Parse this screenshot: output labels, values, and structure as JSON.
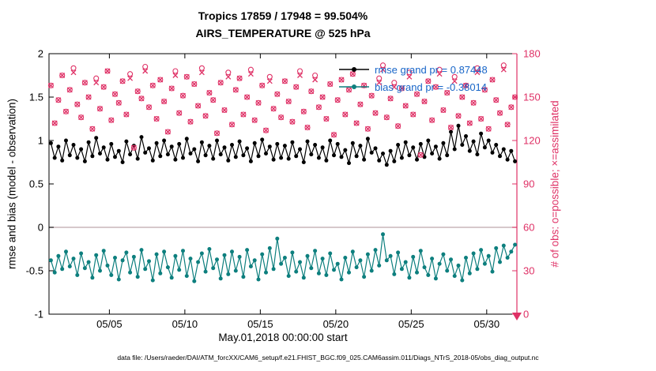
{
  "footer": "data file: /Users/raeder/DAI/ATM_forcXX/CAM6_setup/f.e21.FHIST_BGC.f09_025.CAM6assim.011/Diags_NTrS_2018-05/obs_diag_output.nc",
  "colors": {
    "rmse": "#000000",
    "bias": "#0d7f7e",
    "obs": "#df3166",
    "zero_line": "#c9b6ba",
    "legend_text": "#1765c8",
    "axis_black": "#000000"
  },
  "chart_data": {
    "type": "line+scatter",
    "title_line1": "Tropics 17859 / 17948 = 99.504%",
    "title_line2": "AIRS_TEMPERATURE @ 525 hPa",
    "xlabel": "May.01,2018 00:00:00 start",
    "ylabel_left": "rmse and bias (model - observation)",
    "ylabel_right": "# of obs: o=possible; ×=assimilated",
    "grid": "off",
    "zero_line": true,
    "x_axis": {
      "range_days": [
        0,
        31
      ],
      "ticks_days": [
        4,
        9,
        14,
        19,
        24,
        29
      ],
      "tick_labels": [
        "05/05",
        "05/10",
        "05/15",
        "05/20",
        "05/25",
        "05/30"
      ]
    },
    "left_axis": {
      "range": [
        -1,
        2
      ],
      "ticks": [
        -1,
        -0.5,
        0,
        0.5,
        1,
        1.5,
        2
      ],
      "tick_labels": [
        "-1",
        "-0.5",
        "0",
        "0.5",
        "1",
        "1.5",
        "2"
      ]
    },
    "right_axis": {
      "range": [
        0,
        180
      ],
      "ticks": [
        0,
        30,
        60,
        90,
        120,
        150,
        180
      ],
      "tick_labels": [
        "0",
        "30",
        "60",
        "90",
        "120",
        "150",
        "180"
      ]
    },
    "x": {
      "start_day": 0.125,
      "step_days": 0.25,
      "count": 124
    },
    "legend": {
      "position": "top-right",
      "text_color": "#1765c8",
      "entries": [
        {
          "series": "rmse",
          "label": "rmse grand pr = 0.87448"
        },
        {
          "series": "bias",
          "label": "bias grand pr = -0.38014"
        }
      ]
    },
    "series": [
      {
        "name": "rmse",
        "axis": "left",
        "line": true,
        "marker": "filled-circle",
        "color": "#000000",
        "grand_value": 0.87448,
        "values": [
          0.97,
          0.8,
          0.93,
          0.77,
          1.0,
          0.83,
          0.95,
          0.8,
          0.9,
          0.76,
          0.98,
          0.82,
          1.03,
          0.85,
          0.92,
          0.78,
          0.96,
          0.81,
          0.88,
          0.75,
          0.99,
          0.84,
          0.94,
          0.79,
          1.04,
          0.86,
          0.91,
          0.77,
          0.97,
          0.82,
          1.0,
          0.84,
          0.93,
          0.78,
          0.96,
          0.8,
          1.02,
          0.85,
          0.9,
          0.76,
          0.98,
          0.83,
          0.94,
          0.79,
          1.0,
          0.84,
          0.92,
          0.77,
          0.95,
          0.81,
          0.99,
          0.83,
          0.91,
          0.76,
          0.97,
          0.82,
          1.01,
          0.85,
          0.93,
          0.78,
          0.96,
          0.8,
          0.94,
          0.79,
          0.98,
          0.82,
          0.9,
          0.75,
          0.99,
          0.84,
          0.95,
          0.8,
          0.92,
          0.77,
          1.0,
          0.83,
          0.96,
          0.81,
          0.89,
          0.74,
          0.97,
          0.82,
          0.94,
          0.78,
          1.02,
          0.86,
          0.91,
          0.77,
          0.85,
          0.72,
          0.88,
          0.76,
          0.95,
          0.8,
          0.98,
          0.83,
          0.92,
          0.78,
          0.96,
          0.81,
          1.0,
          0.85,
          0.93,
          0.79,
          0.97,
          0.83,
          1.1,
          0.9,
          1.17,
          0.95,
          1.05,
          0.88,
          0.99,
          0.84,
          1.08,
          0.92,
          1.0,
          0.86,
          0.95,
          0.82,
          0.9,
          0.78,
          0.88,
          0.76
        ]
      },
      {
        "name": "bias",
        "axis": "left",
        "line": true,
        "marker": "filled-circle",
        "color": "#0d7f7e",
        "grand_value": -0.38014,
        "values": [
          -0.38,
          -0.52,
          -0.33,
          -0.48,
          -0.28,
          -0.45,
          -0.36,
          -0.55,
          -0.3,
          -0.47,
          -0.4,
          -0.58,
          -0.32,
          -0.5,
          -0.27,
          -0.44,
          -0.55,
          -0.35,
          -0.6,
          -0.38,
          -0.29,
          -0.52,
          -0.34,
          -0.57,
          -0.26,
          -0.48,
          -0.39,
          -0.61,
          -0.31,
          -0.53,
          -0.28,
          -0.46,
          -0.58,
          -0.33,
          -0.49,
          -0.27,
          -0.56,
          -0.36,
          -0.62,
          -0.4,
          -0.3,
          -0.51,
          -0.25,
          -0.47,
          -0.37,
          -0.59,
          -0.32,
          -0.54,
          -0.28,
          -0.5,
          -0.34,
          -0.57,
          -0.26,
          -0.45,
          -0.38,
          -0.6,
          -0.31,
          -0.52,
          -0.24,
          -0.48,
          -0.13,
          -0.42,
          -0.35,
          -0.56,
          -0.29,
          -0.51,
          -0.4,
          -0.58,
          -0.33,
          -0.47,
          -0.27,
          -0.53,
          -0.36,
          -0.55,
          -0.3,
          -0.49,
          -0.42,
          -0.6,
          -0.35,
          -0.52,
          -0.28,
          -0.46,
          -0.38,
          -0.57,
          -0.31,
          -0.5,
          -0.26,
          -0.44,
          -0.08,
          -0.38,
          -0.33,
          -0.54,
          -0.29,
          -0.48,
          -0.4,
          -0.58,
          -0.34,
          -0.52,
          -0.27,
          -0.46,
          -0.55,
          -0.36,
          -0.59,
          -0.42,
          -0.31,
          -0.5,
          -0.37,
          -0.56,
          -0.44,
          -0.61,
          -0.35,
          -0.53,
          -0.3,
          -0.48,
          -0.26,
          -0.42,
          -0.33,
          -0.51,
          -0.24,
          -0.4,
          -0.21,
          -0.35,
          -0.28,
          -0.2
        ]
      },
      {
        "name": "possible",
        "axis": "right",
        "line": false,
        "marker": "open-circle",
        "color": "#df3166",
        "total": 17948,
        "values": [
          158,
          132,
          148,
          165,
          140,
          155,
          170,
          145,
          136,
          160,
          150,
          128,
          163,
          142,
          157,
          168,
          134,
          152,
          146,
          161,
          138,
          166,
          115,
          154,
          149,
          171,
          143,
          158,
          135,
          162,
          147,
          126,
          156,
          168,
          139,
          151,
          164,
          133,
          159,
          144,
          170,
          137,
          153,
          148,
          125,
          160,
          141,
          167,
          131,
          155,
          163,
          138,
          150,
          169,
          134,
          146,
          158,
          127,
          164,
          142,
          152,
          136,
          161,
          147,
          133,
          157,
          168,
          140,
          129,
          154,
          165,
          143,
          150,
          135,
          159,
          124,
          148,
          162,
          138,
          155,
          166,
          132,
          145,
          158,
          128,
          151,
          139,
          163,
          172,
          136,
          149,
          160,
          130,
          156,
          144,
          167,
          138,
          152,
          110,
          147,
          161,
          134,
          157,
          169,
          141,
          153,
          129,
          164,
          137,
          150,
          158,
          132,
          146,
          170,
          135,
          155,
          128,
          162,
          148,
          139,
          172,
          131,
          143,
          150
        ]
      },
      {
        "name": "assimilated",
        "axis": "right",
        "line": false,
        "marker": "x",
        "color": "#df3166",
        "total": 17859,
        "values": [
          158,
          132,
          148,
          165,
          140,
          155,
          167,
          145,
          136,
          160,
          150,
          128,
          160,
          142,
          157,
          168,
          134,
          152,
          146,
          161,
          138,
          163,
          115,
          154,
          149,
          168,
          143,
          158,
          135,
          162,
          147,
          126,
          156,
          165,
          139,
          151,
          164,
          133,
          159,
          144,
          167,
          137,
          153,
          148,
          125,
          160,
          141,
          164,
          131,
          155,
          163,
          138,
          150,
          166,
          134,
          146,
          158,
          127,
          161,
          142,
          152,
          136,
          161,
          147,
          133,
          157,
          165,
          140,
          129,
          154,
          162,
          143,
          150,
          135,
          159,
          124,
          148,
          162,
          138,
          155,
          166,
          132,
          145,
          158,
          128,
          151,
          139,
          160,
          169,
          136,
          149,
          157,
          130,
          156,
          144,
          164,
          138,
          152,
          110,
          147,
          161,
          134,
          157,
          166,
          141,
          153,
          129,
          161,
          137,
          150,
          158,
          132,
          146,
          167,
          135,
          155,
          128,
          162,
          148,
          139,
          169,
          131,
          143,
          150
        ]
      }
    ]
  }
}
